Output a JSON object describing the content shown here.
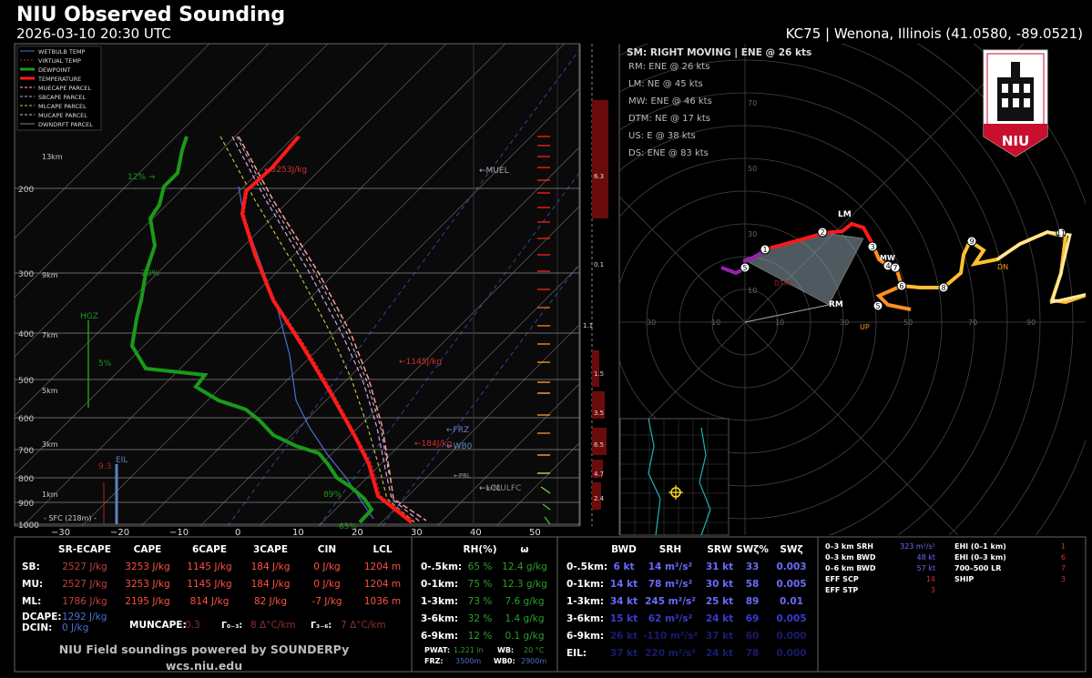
{
  "header": {
    "title": "NIU Observed Sounding",
    "datetime": "2026-03-10 20:30 UTC",
    "station": "KC75 | Wenona, Illinois (41.0580, -89.0521)"
  },
  "legend": [
    "WETBULB TEMP",
    "VIRTUAL TEMP",
    "DEWPOINT",
    "TEMPERATURE",
    "MUECAPE PARCEL",
    "SBCAPE PARCEL",
    "MLCAPE PARCEL",
    "MUCAPE PARCEL",
    "DWNDRFT PARCEL"
  ],
  "colors": {
    "temperature": "#ff1a1a",
    "dewpoint": "#1a9a1a",
    "wetbulb": "#4a6fd0",
    "virtual": "#cc2222",
    "parcel": "#ff7777",
    "accent": "#ff4040"
  },
  "skewt": {
    "pressure_labels": [
      "200",
      "300",
      "400",
      "500",
      "600",
      "700",
      "800",
      "900",
      "1000"
    ],
    "height_labels": [
      "13km",
      "9km",
      "7km",
      "5km",
      "3km",
      "1km"
    ],
    "temp_labels": [
      "−30",
      "−20",
      "−10",
      "0",
      "10",
      "20",
      "30",
      "40",
      "50"
    ],
    "annotations": {
      "mucape_top": "←3253J/kg",
      "mid_cape": "←1145J/kg",
      "low_cape": "←184J/kg",
      "muel": "←MUEL",
      "frz": "←FRZ",
      "wb0": "←WB0",
      "pbl": "←PBL",
      "lcl": "←LCL",
      "mulfc": "←MULFC",
      "rh12": "12% →",
      "rh20": "20%",
      "rh5": "5%",
      "rh89": "89%",
      "rh65": "65%",
      "hgz": "HGZ",
      "eil": "EIL",
      "sfc": "- SFC (218m) -",
      "lr_93": "9.3"
    }
  },
  "shear_scale": [
    "6.3",
    "0.1",
    "1.1",
    "1.5",
    "3.5",
    "6.5",
    "4.7",
    "2.4"
  ],
  "hodograph": {
    "sm_title": "SM: RIGHT MOVING | ENE @ 26 kts",
    "motions": [
      "RM: ENE @ 26 kts",
      "LM: NE @ 45 kts",
      "MW: ENE @ 46 kts",
      "DTM: NE @ 17 kts",
      "US: E @ 38 kts",
      "DS: ENE @ 83 kts"
    ],
    "ring_labels": [
      "70",
      "50",
      "30",
      "10"
    ],
    "axis_labels": [
      "30",
      "10",
      "10",
      "30",
      "50",
      "70",
      "90"
    ],
    "markers": {
      "lm": "LM",
      "rm": "RM",
      "mw": "MW",
      "dn": "DN",
      "up": "UP",
      "dtm": "DTM"
    }
  },
  "table_cape": {
    "headers": [
      "SR-ECAPE",
      "CAPE",
      "6CAPE",
      "3CAPE",
      "CIN",
      "LCL"
    ],
    "rows": [
      {
        "label": "SB:",
        "vals": [
          "2527 J/kg",
          "3253 J/kg",
          "1145 J/kg",
          "184 J/kg",
          "0 J/kg",
          "1204 m"
        ]
      },
      {
        "label": "MU:",
        "vals": [
          "2527 J/kg",
          "3253 J/kg",
          "1145 J/kg",
          "184 J/kg",
          "0 J/kg",
          "1204 m"
        ]
      },
      {
        "label": "ML:",
        "vals": [
          "1786 J/kg",
          "2195 J/kg",
          "814 J/kg",
          "82 J/kg",
          "-7 J/kg",
          "1036 m"
        ]
      }
    ],
    "dcape_label": "DCAPE:",
    "dcape": "1292 J/kg",
    "dcin_label": "DCIN:",
    "dcin": "0 J/kg",
    "muncape_label": "MUNCAPE:",
    "muncape": "0.3",
    "g03_label": "Γ₀₋₃:",
    "g03": "8 Δ°C/km",
    "g36_label": "Γ₃₋₆:",
    "g36": "7 Δ°C/km",
    "footer1": "NIU Field soundings powered by SOUNDERPy",
    "footer2": "wcs.niu.edu"
  },
  "table_moist": {
    "headers": [
      "RH(%)",
      "ω"
    ],
    "rows": [
      {
        "label": "0-.5km:",
        "rh": "65 %",
        "w": "12.4 g/kg"
      },
      {
        "label": "0-1km:",
        "rh": "75 %",
        "w": "12.3 g/kg"
      },
      {
        "label": "1-3km:",
        "rh": "73 %",
        "w": "7.6 g/kg"
      },
      {
        "label": "3-6km:",
        "rh": "32 %",
        "w": "1.4 g/kg"
      },
      {
        "label": "6-9km:",
        "rh": "12 %",
        "w": "0.1 g/kg"
      }
    ],
    "pwat_label": "PWAT:",
    "pwat": "1.221 in",
    "wb_label": "WB:",
    "wb": "20 °C",
    "frz_label": "FRZ:",
    "frz": "3500m",
    "wb0_label": "WB0:",
    "wb0": "2900m"
  },
  "table_kin": {
    "headers": [
      "BWD",
      "SRH",
      "SRW",
      "SWζ%",
      "SWζ"
    ],
    "rows": [
      {
        "label": "0-.5km:",
        "vals": [
          "6 kt",
          "14 m²/s²",
          "31 kt",
          "33",
          "0.003"
        ]
      },
      {
        "label": "0-1km:",
        "vals": [
          "14 kt",
          "78 m²/s²",
          "30 kt",
          "58",
          "0.005"
        ]
      },
      {
        "label": "1-3km:",
        "vals": [
          "34 kt",
          "245 m²/s²",
          "25 kt",
          "89",
          "0.01"
        ]
      },
      {
        "label": "3-6km:",
        "vals": [
          "15 kt",
          "62 m²/s²",
          "24 kt",
          "69",
          "0.005"
        ]
      },
      {
        "label": "6-9km:",
        "vals": [
          "26 kt",
          "-110 m²/s²",
          "37 kt",
          "60",
          "0.000"
        ]
      },
      {
        "label": "EIL:",
        "vals": [
          "37 kt",
          "220 m²/s²",
          "24 kt",
          "78",
          "0.000"
        ]
      }
    ]
  },
  "table_idx": {
    "left": [
      {
        "label": "0–3 km SRH",
        "val": "323 m²/s²"
      },
      {
        "label": "0–3 km BWD",
        "val": "48 kt"
      },
      {
        "label": "0–6 km BWD",
        "val": "57 kt"
      },
      {
        "label": "EFF SCP",
        "val": "14"
      },
      {
        "label": "EFF STP",
        "val": "3"
      }
    ],
    "right": [
      {
        "label": "EHI (0–1 km)",
        "val": "1"
      },
      {
        "label": "EHI (0–3 km)",
        "val": "6"
      },
      {
        "label": "700–500 LR",
        "val": "7"
      },
      {
        "label": "SHIP",
        "val": "3"
      }
    ]
  },
  "logo": "NIU"
}
